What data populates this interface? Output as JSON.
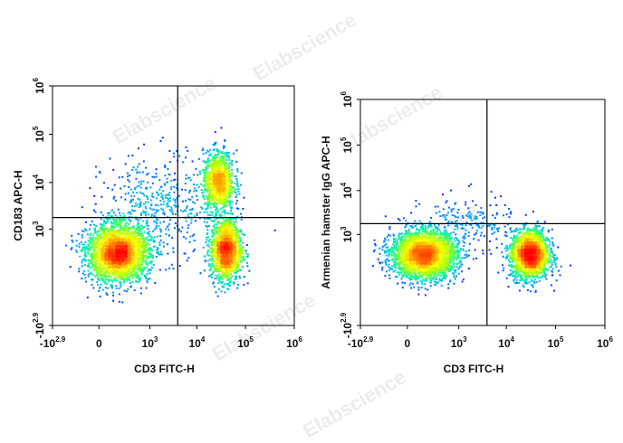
{
  "watermark": "Elabscience",
  "chart_data": [
    {
      "type": "scatter",
      "subtype": "flow-cytometry-density",
      "xlabel": "CD3 FITC-H",
      "ylabel": "CD183 APC-H",
      "x_scale": "biexponential",
      "y_scale": "biexponential",
      "xlim": [
        -794,
        1000000
      ],
      "ylim": [
        -794,
        1000000
      ],
      "x_ticks": [
        {
          "base": "-10",
          "exp": "2.9",
          "value": -794
        },
        {
          "base": "0",
          "exp": "",
          "value": 0
        },
        {
          "base": "10",
          "exp": "3",
          "value": 1000
        },
        {
          "base": "10",
          "exp": "4",
          "value": 10000
        },
        {
          "base": "10",
          "exp": "5",
          "value": 100000
        },
        {
          "base": "10",
          "exp": "6",
          "value": 1000000
        }
      ],
      "y_ticks": [
        {
          "base": "-10",
          "exp": "2.9",
          "value": -794
        },
        {
          "base": "10",
          "exp": "3",
          "value": 1000
        },
        {
          "base": "10",
          "exp": "4",
          "value": 10000
        },
        {
          "base": "10",
          "exp": "5",
          "value": 100000
        },
        {
          "base": "10",
          "exp": "6",
          "value": 1000000
        }
      ],
      "quadrant_gate": {
        "x": 4000,
        "y": 1800
      },
      "populations": [
        {
          "x": 150,
          "y": 250,
          "count": 2600,
          "spread_x": 0.9,
          "spread_y": 0.85
        },
        {
          "x": 40000,
          "y": 300,
          "count": 1500,
          "spread_x": 0.45,
          "spread_y": 0.9
        },
        {
          "x": 28000,
          "y": 10000,
          "count": 1050,
          "spread_x": 0.45,
          "spread_y": 0.9
        },
        {
          "x": 1500,
          "y": 3000,
          "count": 450,
          "spread_x": 1.6,
          "spread_y": 1.5
        }
      ]
    },
    {
      "type": "scatter",
      "subtype": "flow-cytometry-density",
      "xlabel": "CD3 FITC-H",
      "ylabel": "Armenian hamster IgG APC-H",
      "x_scale": "biexponential",
      "y_scale": "biexponential",
      "xlim": [
        -794,
        1000000
      ],
      "ylim": [
        -794,
        1000000
      ],
      "x_ticks": [
        {
          "base": "-10",
          "exp": "2.9",
          "value": -794
        },
        {
          "base": "0",
          "exp": "",
          "value": 0
        },
        {
          "base": "10",
          "exp": "3",
          "value": 1000
        },
        {
          "base": "10",
          "exp": "4",
          "value": 10000
        },
        {
          "base": "10",
          "exp": "5",
          "value": 100000
        },
        {
          "base": "10",
          "exp": "6",
          "value": 1000000
        }
      ],
      "y_ticks": [
        {
          "base": "-10",
          "exp": "2.9",
          "value": -794
        },
        {
          "base": "10",
          "exp": "3",
          "value": 1000
        },
        {
          "base": "10",
          "exp": "4",
          "value": 10000
        },
        {
          "base": "10",
          "exp": "5",
          "value": 100000
        },
        {
          "base": "10",
          "exp": "6",
          "value": 1000000
        }
      ],
      "quadrant_gate": {
        "x": 4000,
        "y": 1800
      },
      "populations": [
        {
          "x": 120,
          "y": 300,
          "count": 2800,
          "spread_x": 0.95,
          "spread_y": 0.75
        },
        {
          "x": 30000,
          "y": 300,
          "count": 2100,
          "spread_x": 0.55,
          "spread_y": 0.75
        },
        {
          "x": 1500,
          "y": 1800,
          "count": 180,
          "spread_x": 1.3,
          "spread_y": 0.9
        }
      ]
    }
  ],
  "colors": {
    "density_ramp": [
      "#0000ff",
      "#00a0ff",
      "#00ffa0",
      "#a0ff00",
      "#ffff00",
      "#ff8000",
      "#ff0000"
    ],
    "gate": "#000000",
    "frame": "#000000"
  }
}
